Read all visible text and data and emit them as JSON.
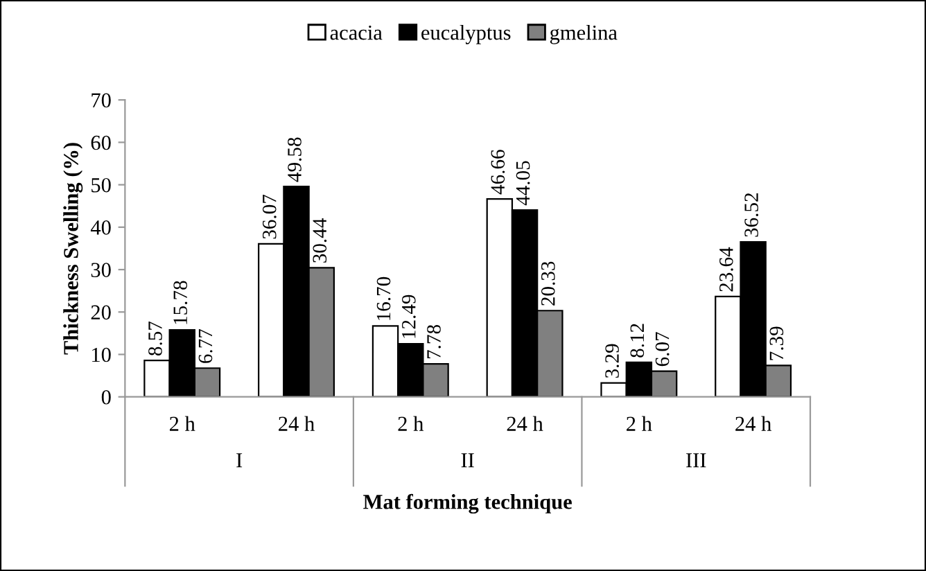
{
  "chart_data": {
    "type": "bar",
    "xlabel": "Mat forming technique",
    "ylabel": "Thickness Swelling (%)",
    "categories": [
      "2 h",
      "24 h",
      "2 h",
      "24 h",
      "2 h",
      "24 h"
    ],
    "annotations": [
      "I",
      "II",
      "III"
    ],
    "series": [
      {
        "name": "acacia",
        "color": "#ffffff",
        "values": [
          8.57,
          36.07,
          16.7,
          46.66,
          3.29,
          23.64
        ],
        "value_labels": [
          "8.57",
          "36.07",
          "16.70",
          "46.66",
          "3.29",
          "23.64"
        ]
      },
      {
        "name": "eucalyptus",
        "color": "#000000",
        "values": [
          15.78,
          49.58,
          12.49,
          44.05,
          8.12,
          36.52
        ],
        "value_labels": [
          "15.78",
          "49.58",
          "12.49",
          "44.05",
          "8.12",
          "36.52"
        ]
      },
      {
        "name": "gmelina",
        "color": "#808080",
        "values": [
          6.77,
          30.44,
          7.78,
          20.33,
          6.07,
          7.39
        ],
        "value_labels": [
          "6.77",
          "30.44",
          "7.78",
          "20.33",
          "6.07",
          "7.39"
        ]
      }
    ],
    "ylim": [
      0,
      70
    ],
    "yticks": [
      0,
      10,
      20,
      30,
      40,
      50,
      60,
      70
    ],
    "grid": false,
    "legend": "top"
  }
}
